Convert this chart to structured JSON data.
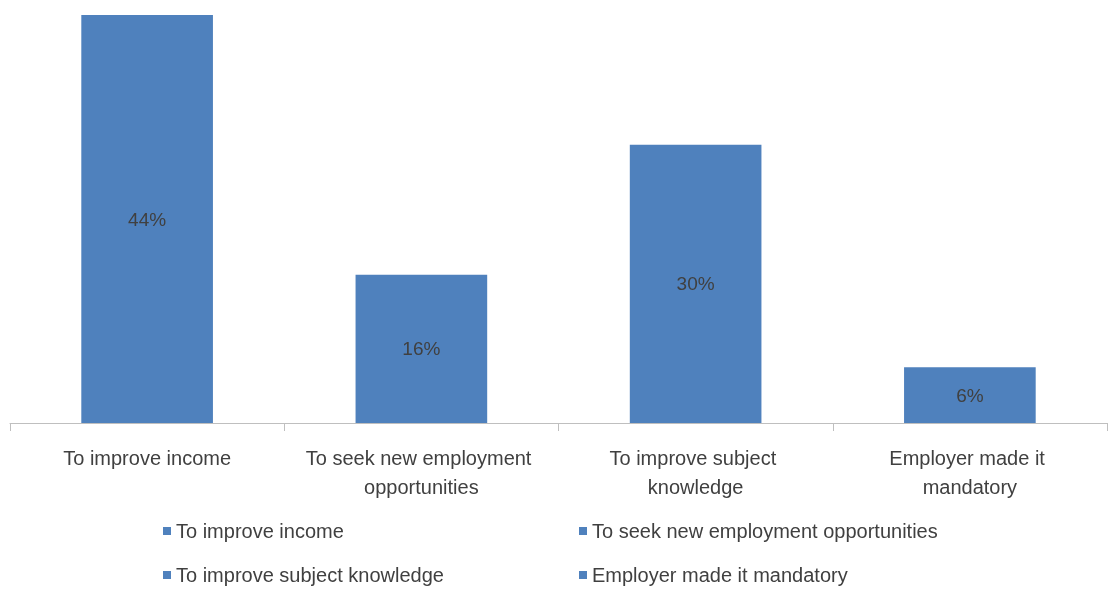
{
  "chart_data": {
    "type": "bar",
    "categories": [
      "To improve income",
      "To seek new employment opportunities",
      "To improve subject knowledge",
      "Employer made it mandatory"
    ],
    "series": [
      {
        "name": "To improve income",
        "color": "#4f81bd",
        "values": [
          44,
          null,
          null,
          null
        ],
        "value_labels": [
          "44%",
          null,
          null,
          null
        ]
      },
      {
        "name": "To seek new employment opportunities",
        "color": "#4f81bd",
        "values": [
          null,
          16,
          null,
          null
        ],
        "value_labels": [
          null,
          "16%",
          null,
          null
        ]
      },
      {
        "name": "To improve subject knowledge",
        "color": "#4f81bd",
        "values": [
          null,
          null,
          30,
          null
        ],
        "value_labels": [
          null,
          null,
          "30%",
          null
        ]
      },
      {
        "name": "Employer made it mandatory",
        "color": "#4f81bd",
        "values": [
          null,
          null,
          null,
          6
        ],
        "value_labels": [
          null,
          null,
          null,
          "6%"
        ]
      }
    ],
    "legend": "bottom"
  }
}
